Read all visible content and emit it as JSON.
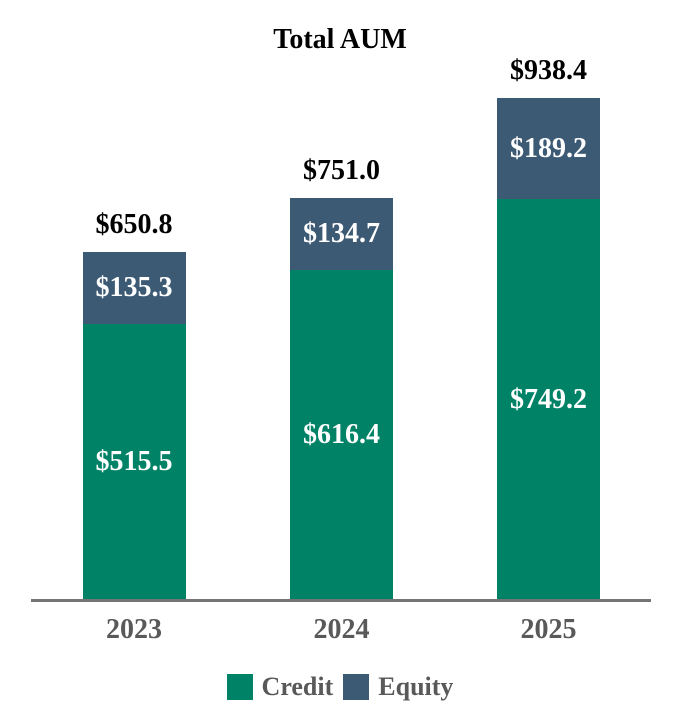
{
  "chart_data": {
    "type": "bar",
    "stacked": true,
    "title": "Total AUM",
    "categories": [
      "2023",
      "2024",
      "2025"
    ],
    "series": [
      {
        "name": "Credit",
        "color": "#008266",
        "values": [
          515.5,
          616.4,
          749.2
        ],
        "labels": [
          "$515.5",
          "$616.4",
          "$749.2"
        ]
      },
      {
        "name": "Equity",
        "color": "#3D5A75",
        "values": [
          135.3,
          134.7,
          189.2
        ],
        "labels": [
          "$135.3",
          "$134.7",
          "$189.2"
        ]
      }
    ],
    "totals": [
      650.8,
      751.0,
      938.4
    ],
    "total_labels": [
      "$650.8",
      "$751.0",
      "$938.4"
    ],
    "legend_position": "bottom",
    "grid": "off",
    "colors": {
      "title_text": "#000000",
      "total_label_text": "#000000",
      "segment_label_text": "#FFFFFF",
      "axis_line": "#757575",
      "tick_label_text": "#595959",
      "legend_text": "#595959",
      "background": "#FFFFFF"
    }
  }
}
